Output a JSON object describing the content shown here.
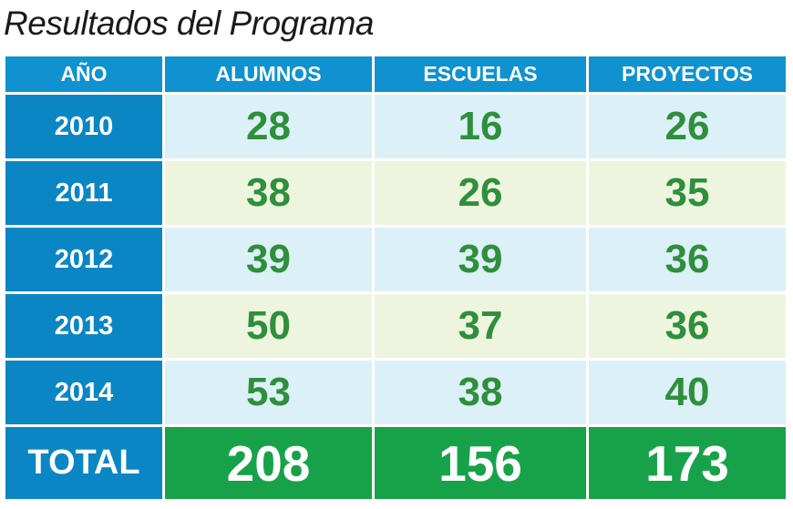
{
  "title": "Resultados del Programa",
  "chart_data": {
    "type": "table",
    "title": "Resultados del Programa",
    "columns": [
      "AÑO",
      "ALUMNOS",
      "ESCUELAS",
      "PROYECTOS"
    ],
    "rows": [
      {
        "year": "2010",
        "alumnos": "28",
        "escuelas": "16",
        "proyectos": "26"
      },
      {
        "year": "2011",
        "alumnos": "38",
        "escuelas": "26",
        "proyectos": "35"
      },
      {
        "year": "2012",
        "alumnos": "39",
        "escuelas": "39",
        "proyectos": "36"
      },
      {
        "year": "2013",
        "alumnos": "50",
        "escuelas": "37",
        "proyectos": "36"
      },
      {
        "year": "2014",
        "alumnos": "53",
        "escuelas": "38",
        "proyectos": "40"
      }
    ],
    "total": {
      "label": "TOTAL",
      "alumnos": "208",
      "escuelas": "156",
      "proyectos": "173"
    }
  },
  "colors": {
    "header": "#0f92cf",
    "year_cell": "#0a86c4",
    "row_blue": "#dcf0f7",
    "row_green": "#eef5de",
    "value_text": "#2f8f3c",
    "total": "#17a24a"
  }
}
